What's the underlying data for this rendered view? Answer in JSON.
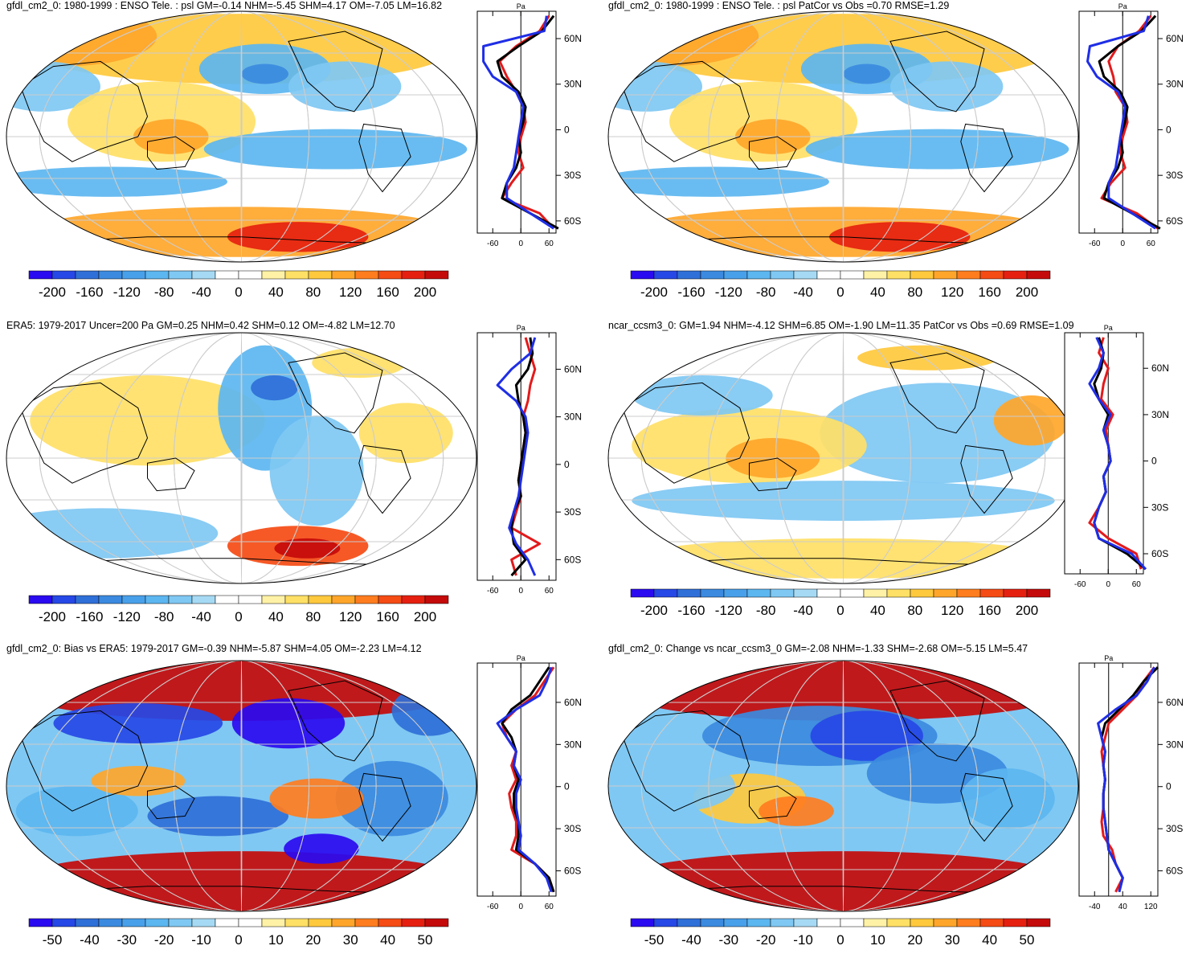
{
  "colors": {
    "ocean_bg": "#ffffff",
    "coast": "#000000",
    "grid": "#cccccc",
    "obs_line": "#000000",
    "model_line": "#e31a1c",
    "alt_line": "#1f2ee6",
    "palette": [
      "#2a0af0",
      "#2648e6",
      "#2f6fd8",
      "#3b8ae0",
      "#49a0ea",
      "#5cb6f0",
      "#7fc8f3",
      "#a6daf4",
      "#ffffff",
      "#ffffff",
      "#fff2a6",
      "#ffe066",
      "#ffc93d",
      "#ffa62a",
      "#ff7d1f",
      "#f54b14",
      "#e62010",
      "#c40a0a"
    ]
  },
  "panels": [
    {
      "id": "p1",
      "title": "gfdl_cm2_0: 1980-1999 : ENSO Tele. : psl GM=-0.14 NHM=-5.45 SHM=4.17 OM=-7.05 LM=16.82",
      "unit": "Pa",
      "colorbar_labels": [
        "-200",
        "-160",
        "-120",
        "-80",
        "-40",
        "0",
        "40",
        "80",
        "120",
        "160",
        "200"
      ],
      "profile_lat_labels": [
        "60N",
        "30N",
        "0",
        "30S",
        "60S"
      ],
      "profile_x_labels": [
        "-60",
        "0",
        "60"
      ]
    },
    {
      "id": "p2",
      "title": "gfdl_cm2_0: 1980-1999 : ENSO Tele. : psl PatCor vs Obs =0.70 RMSE=1.29",
      "unit": "Pa",
      "colorbar_labels": [
        "-200",
        "-160",
        "-120",
        "-80",
        "-40",
        "0",
        "40",
        "80",
        "120",
        "160",
        "200"
      ],
      "profile_lat_labels": [
        "60N",
        "30N",
        "0",
        "30S",
        "60S"
      ],
      "profile_x_labels": [
        "-60",
        "0",
        "60"
      ]
    },
    {
      "id": "p3",
      "title": "ERA5: 1979-2017 Uncer=200 Pa GM=0.25 NHM=0.42 SHM=0.12 OM=-4.82 LM=12.70",
      "unit": "Pa",
      "colorbar_labels": [
        "-200",
        "-160",
        "-120",
        "-80",
        "-40",
        "0",
        "40",
        "80",
        "120",
        "160",
        "200"
      ],
      "profile_lat_labels": [
        "60N",
        "30N",
        "0",
        "30S",
        "60S"
      ],
      "profile_x_labels": [
        "-60",
        "0",
        "60"
      ]
    },
    {
      "id": "p4",
      "title": "ncar_ccsm3_0: GM=1.94 NHM=-4.12 SHM=6.85 OM=-1.90 LM=11.35 PatCor vs Obs =0.69 RMSE=1.09",
      "unit": "Pa",
      "colorbar_labels": [
        "-200",
        "-160",
        "-120",
        "-80",
        "-40",
        "0",
        "40",
        "80",
        "120",
        "160",
        "200"
      ],
      "profile_lat_labels": [
        "60N",
        "30N",
        "0",
        "30S",
        "60S"
      ],
      "profile_x_labels": [
        "-60",
        "0",
        "60"
      ]
    },
    {
      "id": "p5",
      "title": "gfdl_cm2_0: Bias vs ERA5: 1979-2017 GM=-0.39 NHM=-5.87 SHM=4.05 OM=-2.23 LM=4.12",
      "unit": "Pa",
      "colorbar_labels": [
        "-50",
        "-40",
        "-30",
        "-20",
        "-10",
        "0",
        "10",
        "20",
        "30",
        "40",
        "50"
      ],
      "profile_lat_labels": [
        "60N",
        "30N",
        "0",
        "30S",
        "60S"
      ],
      "profile_x_labels": [
        "-60",
        "0",
        "60"
      ]
    },
    {
      "id": "p6",
      "title": "gfdl_cm2_0: Change vs ncar_ccsm3_0 GM=-2.08 NHM=-1.33 SHM=-2.68 OM=-5.15 LM=5.47",
      "unit": "Pa",
      "colorbar_labels": [
        "-50",
        "-40",
        "-30",
        "-20",
        "-10",
        "0",
        "10",
        "20",
        "30",
        "40",
        "50"
      ],
      "profile_lat_labels": [
        "60N",
        "30N",
        "0",
        "30S",
        "60S"
      ],
      "profile_x_labels": [
        "-40",
        "40",
        "120"
      ]
    }
  ],
  "chart_data": [
    {
      "type": "heatmap",
      "title": "gfdl_cm2_0: 1980-1999 : ENSO Tele. : psl GM=-0.14 NHM=-5.45 SHM=4.17 OM=-7.05 LM=16.82",
      "colorbar_ticks": [
        -200,
        -160,
        -120,
        -80,
        -40,
        0,
        40,
        80,
        120,
        160,
        200
      ],
      "zonal_profile": {
        "ylabel_ticks": [
          "60N",
          "30N",
          "0",
          "30S",
          "60S"
        ],
        "x_ticks": [
          -60,
          0,
          60
        ],
        "lat": [
          75,
          65,
          55,
          45,
          35,
          25,
          15,
          5,
          -5,
          -15,
          -25,
          -35,
          -45,
          -55,
          -65
        ],
        "series": [
          {
            "name": "model",
            "color": "red",
            "values": [
              60,
              40,
              -10,
              -45,
              -30,
              -10,
              5,
              10,
              0,
              -5,
              5,
              -20,
              -40,
              40,
              70
            ]
          },
          {
            "name": "obs",
            "color": "black",
            "values": [
              70,
              45,
              -5,
              -50,
              -40,
              -5,
              10,
              5,
              -5,
              0,
              -10,
              -30,
              -40,
              20,
              80
            ]
          },
          {
            "name": "alt",
            "color": "blue",
            "values": [
              55,
              50,
              -80,
              -80,
              -60,
              -10,
              5,
              0,
              -5,
              -10,
              -15,
              -30,
              -30,
              20,
              70
            ]
          }
        ]
      }
    },
    {
      "type": "heatmap",
      "title": "gfdl_cm2_0: 1980-1999 : ENSO Tele. : psl PatCor vs Obs =0.70 RMSE=1.29",
      "colorbar_ticks": [
        -200,
        -160,
        -120,
        -80,
        -40,
        0,
        40,
        80,
        120,
        160,
        200
      ],
      "zonal_profile": {
        "ylabel_ticks": [
          "60N",
          "30N",
          "0",
          "30S",
          "60S"
        ],
        "x_ticks": [
          -60,
          0,
          60
        ],
        "lat": [
          75,
          65,
          55,
          45,
          35,
          25,
          15,
          5,
          -5,
          -15,
          -25,
          -35,
          -45,
          -55,
          -65
        ],
        "series": [
          {
            "name": "model",
            "color": "red",
            "values": [
              60,
              35,
              -10,
              -30,
              -20,
              -15,
              5,
              10,
              0,
              -5,
              5,
              -25,
              -45,
              30,
              75
            ]
          },
          {
            "name": "obs",
            "color": "black",
            "values": [
              70,
              40,
              -10,
              -50,
              -40,
              -5,
              10,
              5,
              -5,
              0,
              -10,
              -30,
              -40,
              20,
              80
            ]
          },
          {
            "name": "alt",
            "color": "blue",
            "values": [
              55,
              45,
              -70,
              -75,
              -55,
              -10,
              5,
              0,
              -5,
              -10,
              -15,
              -30,
              -30,
              20,
              70
            ]
          }
        ]
      }
    },
    {
      "type": "heatmap",
      "title": "ERA5: 1979-2017 Uncer=200 Pa GM=0.25 NHM=0.42 SHM=0.12 OM=-4.82 LM=12.70",
      "colorbar_ticks": [
        -200,
        -160,
        -120,
        -80,
        -40,
        0,
        40,
        80,
        120,
        160,
        200
      ],
      "zonal_profile": {
        "ylabel_ticks": [
          "60N",
          "30N",
          "0",
          "30S",
          "60S"
        ],
        "x_ticks": [
          -60,
          0,
          60
        ],
        "lat": [
          80,
          70,
          60,
          50,
          40,
          30,
          20,
          10,
          0,
          -10,
          -20,
          -30,
          -40,
          -50,
          -60,
          -70
        ],
        "series": [
          {
            "name": "model",
            "color": "red",
            "values": [
              10,
              20,
              30,
              20,
              15,
              5,
              10,
              5,
              0,
              -5,
              0,
              -10,
              -20,
              40,
              -20,
              -10
            ]
          },
          {
            "name": "obs",
            "color": "black",
            "values": [
              20,
              25,
              15,
              -10,
              -5,
              5,
              10,
              5,
              0,
              -5,
              0,
              -15,
              -20,
              -15,
              10,
              -20
            ]
          },
          {
            "name": "alt",
            "color": "blue",
            "values": [
              30,
              20,
              -20,
              -50,
              -10,
              10,
              15,
              10,
              5,
              0,
              -5,
              -15,
              -25,
              -10,
              15,
              30
            ]
          }
        ]
      }
    },
    {
      "type": "heatmap",
      "title": "ncar_ccsm3_0: GM=1.94 NHM=-4.12 SHM=6.85 OM=-1.90 LM=11.35 PatCor vs Obs =0.69 RMSE=1.09",
      "colorbar_ticks": [
        -200,
        -160,
        -120,
        -80,
        -40,
        0,
        40,
        80,
        120,
        160,
        200
      ],
      "zonal_profile": {
        "ylabel_ticks": [
          "60N",
          "30N",
          "0",
          "30S",
          "60S"
        ],
        "x_ticks": [
          -60,
          0,
          60
        ],
        "lat": [
          80,
          70,
          60,
          50,
          40,
          30,
          20,
          10,
          0,
          -10,
          -20,
          -30,
          -40,
          -50,
          -60,
          -70
        ],
        "series": [
          {
            "name": "model",
            "color": "red",
            "values": [
              -10,
              -20,
              0,
              -10,
              -15,
              10,
              -5,
              0,
              5,
              -10,
              -5,
              -20,
              -40,
              0,
              60,
              70
            ]
          },
          {
            "name": "obs",
            "color": "black",
            "values": [
              -20,
              -10,
              -15,
              -30,
              -20,
              0,
              -10,
              0,
              5,
              -10,
              -5,
              -20,
              -30,
              -20,
              40,
              80
            ]
          },
          {
            "name": "alt",
            "color": "blue",
            "values": [
              -25,
              -10,
              -20,
              -40,
              -20,
              5,
              -10,
              0,
              5,
              -10,
              -5,
              -20,
              -30,
              -20,
              50,
              80
            ]
          }
        ]
      }
    },
    {
      "type": "heatmap",
      "title": "gfdl_cm2_0: Bias vs ERA5: 1979-2017 GM=-0.39 NHM=-5.87 SHM=4.05 OM=-2.23 LM=4.12",
      "colorbar_ticks": [
        -50,
        -40,
        -30,
        -20,
        -10,
        0,
        10,
        20,
        30,
        40,
        50
      ],
      "zonal_profile": {
        "ylabel_ticks": [
          "60N",
          "30N",
          "0",
          "30S",
          "60S"
        ],
        "x_ticks": [
          -60,
          0,
          60
        ],
        "lat": [
          85,
          75,
          65,
          55,
          45,
          35,
          25,
          15,
          5,
          -5,
          -15,
          -25,
          -35,
          -45,
          -55,
          -65,
          -75
        ],
        "series": [
          {
            "name": "model",
            "color": "red",
            "values": [
              70,
              50,
              30,
              -10,
              -40,
              -30,
              -10,
              -20,
              -10,
              -25,
              -20,
              -10,
              -10,
              -20,
              30,
              60,
              70
            ]
          },
          {
            "name": "obs",
            "color": "black",
            "values": [
              60,
              40,
              20,
              -20,
              -40,
              -20,
              -10,
              -15,
              -5,
              -15,
              -15,
              -5,
              -5,
              -10,
              30,
              60,
              70
            ]
          },
          {
            "name": "alt",
            "color": "blue",
            "values": [
              65,
              55,
              40,
              -10,
              -50,
              -30,
              -10,
              -15,
              0,
              -10,
              -10,
              -5,
              0,
              -5,
              30,
              55,
              65
            ]
          }
        ]
      }
    },
    {
      "type": "heatmap",
      "title": "gfdl_cm2_0: Change vs ncar_ccsm3_0 GM=-2.08 NHM=-1.33 SHM=-2.68 OM=-5.15 LM=5.47",
      "colorbar_ticks": [
        -50,
        -40,
        -30,
        -20,
        -10,
        0,
        10,
        20,
        30,
        40,
        50
      ],
      "zonal_profile": {
        "ylabel_ticks": [
          "60N",
          "30N",
          "0",
          "30S",
          "60S"
        ],
        "x_ticks": [
          -40,
          40,
          120
        ],
        "lat": [
          85,
          75,
          65,
          55,
          45,
          35,
          25,
          15,
          5,
          -5,
          -15,
          -25,
          -35,
          -45,
          -55,
          -65,
          -75
        ],
        "series": [
          {
            "name": "model",
            "color": "red",
            "values": [
              130,
              100,
              80,
              40,
              0,
              -10,
              -20,
              -15,
              -10,
              -15,
              -15,
              -20,
              -15,
              10,
              20,
              40,
              20
            ]
          },
          {
            "name": "obs",
            "color": "black",
            "values": [
              140,
              100,
              70,
              30,
              -10,
              -20,
              -10,
              -15,
              -10,
              -15,
              -15,
              -10,
              -5,
              0,
              20,
              40,
              30
            ]
          },
          {
            "name": "alt",
            "color": "blue",
            "values": [
              130,
              110,
              80,
              20,
              -30,
              -20,
              -10,
              -15,
              -10,
              -15,
              -15,
              -10,
              -5,
              0,
              20,
              40,
              30
            ]
          }
        ]
      }
    }
  ]
}
